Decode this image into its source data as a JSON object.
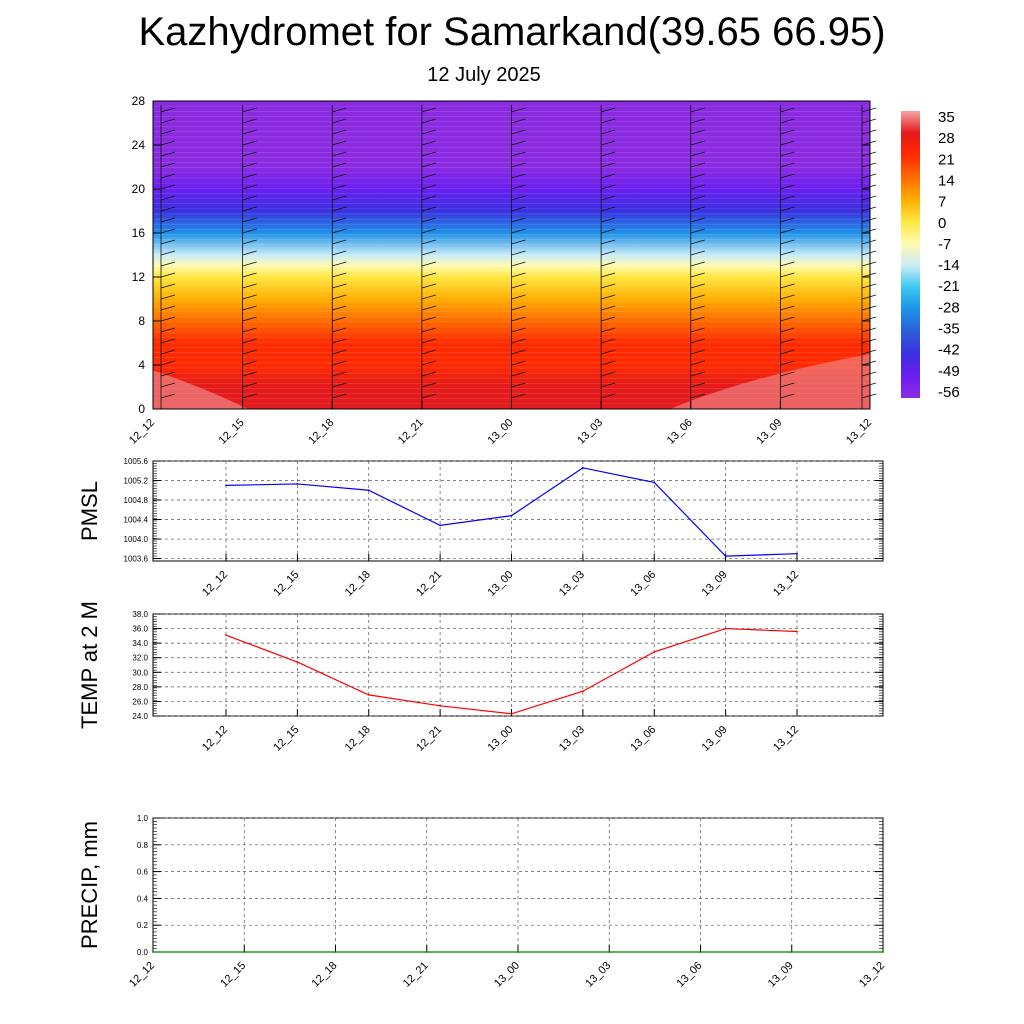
{
  "title": "Kazhydromet for Samarkand(39.65 66.95)",
  "subtitle": "12 July 2025",
  "chart_data": [
    {
      "type": "heatmap",
      "x_ticks": [
        "12_12",
        "12_15",
        "12_18",
        "12_21",
        "13_00",
        "13_03",
        "13_06",
        "13_09",
        "13_12"
      ],
      "y_ticks": [
        "0",
        "4",
        "8",
        "12",
        "16",
        "20",
        "24",
        "28"
      ],
      "ylim": [
        0,
        28
      ],
      "colorbar": {
        "labels": [
          "35",
          "28",
          "21",
          "14",
          "7",
          "0",
          "-7",
          "-14",
          "-21",
          "-28",
          "-35",
          "-42",
          "-49",
          "-56"
        ],
        "values": [
          35,
          28,
          21,
          14,
          7,
          0,
          -7,
          -14,
          -21,
          -28,
          -35,
          -42,
          -49,
          -56
        ],
        "colors": [
          "#f4a3a3",
          "#e41a1c",
          "#ff2a00",
          "#ff6a00",
          "#ffae00",
          "#ffe640",
          "#fffbb0",
          "#c9ecf7",
          "#3cc7f0",
          "#1e90e8",
          "#2b5fd8",
          "#3a30e0",
          "#6a1ff0",
          "#8a2be2"
        ]
      },
      "level_profile": [
        {
          "y": 0,
          "value": 33
        },
        {
          "y": 2,
          "value": 31
        },
        {
          "y": 4,
          "value": 28
        },
        {
          "y": 6,
          "value": 22
        },
        {
          "y": 8,
          "value": 18
        },
        {
          "y": 10,
          "value": 14
        },
        {
          "y": 12,
          "value": 7
        },
        {
          "y": 13,
          "value": 0
        },
        {
          "y": 14,
          "value": -12
        },
        {
          "y": 16,
          "value": -24
        },
        {
          "y": 18,
          "value": -36
        },
        {
          "y": 20,
          "value": -48
        },
        {
          "y": 22,
          "value": -56
        },
        {
          "y": 28,
          "value": -58
        }
      ],
      "grid": false
    },
    {
      "type": "line",
      "ylabel": "PMSL",
      "categories": [
        "12_12",
        "12_15",
        "12_18",
        "12_21",
        "13_00",
        "13_03",
        "13_06",
        "13_09",
        "13_12"
      ],
      "series": [
        {
          "values": [
            1005.1,
            1005.13,
            1005.0,
            1004.28,
            1004.48,
            1005.46,
            1005.16,
            1003.65,
            1003.7
          ],
          "color": "#0000ff"
        }
      ],
      "y_ticks": [
        "1003.6",
        "1004.0",
        "1004.4",
        "1004.8",
        "1005.2",
        "1005.6"
      ],
      "ylim": [
        1003.55,
        1005.6
      ],
      "grid": true
    },
    {
      "type": "line",
      "ylabel": "TEMP at 2 M",
      "categories": [
        "12_12",
        "12_15",
        "12_18",
        "12_21",
        "13_00",
        "13_03",
        "13_06",
        "13_09",
        "13_12"
      ],
      "series": [
        {
          "values": [
            35.1,
            31.4,
            26.9,
            25.4,
            24.3,
            27.4,
            32.8,
            36.0,
            35.6
          ],
          "color": "#ff0000"
        }
      ],
      "y_ticks": [
        "24.0",
        "26.0",
        "28.0",
        "30.0",
        "32.0",
        "34.0",
        "36.0",
        "38.0"
      ],
      "ylim": [
        24.0,
        38.0
      ],
      "grid": true
    },
    {
      "type": "line",
      "ylabel": "PRECIP, mm",
      "categories": [
        "12_12",
        "12_15",
        "12_18",
        "12_21",
        "13_00",
        "13_03",
        "13_06",
        "13_09",
        "13_12"
      ],
      "series": [
        {
          "values": [
            0,
            0,
            0,
            0,
            0,
            0,
            0,
            0,
            0
          ],
          "color": "#008000"
        }
      ],
      "y_ticks": [
        "0.0",
        "0.2",
        "0.4",
        "0.6",
        "0.8",
        "1.0"
      ],
      "ylim": [
        0,
        1.0
      ],
      "grid": true
    }
  ]
}
